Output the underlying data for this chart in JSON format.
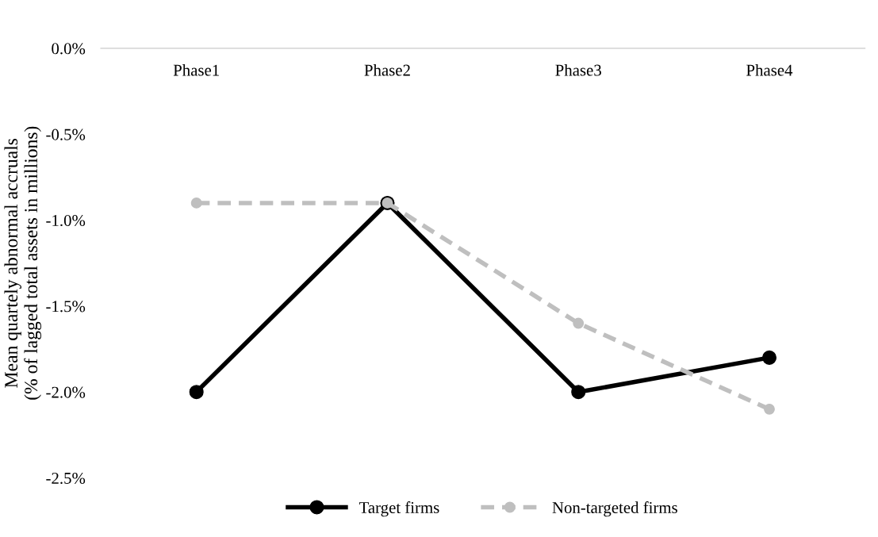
{
  "chart_data": {
    "type": "line",
    "ylabel": "Mean quartely abnormal accruals\n(% of lagged total assets in millions)",
    "categories": [
      "Phase1",
      "Phase2",
      "Phase3",
      "Phase4"
    ],
    "series": [
      {
        "name": "Target firms",
        "color": "#000000",
        "values": [
          -2.0,
          -0.9,
          -2.0,
          -1.8
        ],
        "line_style": "solid"
      },
      {
        "name": "Non-targeted firms",
        "color": "#bfbfbf",
        "values": [
          -0.9,
          -0.9,
          -1.6,
          -2.1
        ],
        "line_style": "dashed"
      }
    ],
    "ylim": [
      -2.5,
      0
    ],
    "yticks": [
      {
        "value": -2.5,
        "label": "-2.5%"
      },
      {
        "value": -2.0,
        "label": "-2.0%"
      },
      {
        "value": -1.5,
        "label": "-1.5%"
      },
      {
        "value": -1.0,
        "label": "-1.0%"
      },
      {
        "value": -0.5,
        "label": "-0.5%"
      },
      {
        "value": 0,
        "label": "0.0%"
      }
    ],
    "marker": "circle",
    "grid": false,
    "legend": "bottom"
  }
}
